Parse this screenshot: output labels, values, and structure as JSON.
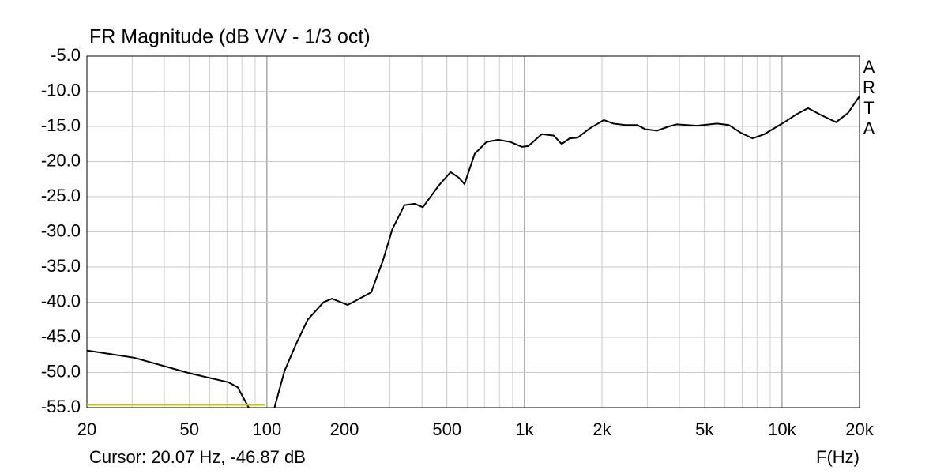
{
  "chart_data": {
    "type": "line",
    "title": "FR Magnitude (dB V/V - 1/3 oct)",
    "x_label": "F(Hz)",
    "annotation": "Cursor: 20.07 Hz, -46.87 dB",
    "watermark": "ARTA",
    "xscale": "log",
    "grid": true,
    "xlim": [
      20,
      20000
    ],
    "ylim": [
      -55,
      -5
    ],
    "xticks": [
      20,
      50,
      100,
      200,
      500,
      {
        "value": 1000,
        "label": "1k"
      },
      {
        "value": 2000,
        "label": "2k"
      },
      {
        "value": 5000,
        "label": "5k"
      },
      {
        "value": 10000,
        "label": "10k"
      },
      {
        "value": 20000,
        "label": "20k"
      }
    ],
    "xminorticks": [
      30,
      40,
      60,
      70,
      80,
      90,
      300,
      400,
      600,
      700,
      800,
      900,
      3000,
      4000,
      6000,
      7000,
      8000,
      9000
    ],
    "yticks": [
      {
        "value": -5,
        "label": "-5.0"
      },
      {
        "value": -10,
        "label": "-10.0"
      },
      {
        "value": -15,
        "label": "-15.0"
      },
      {
        "value": -20,
        "label": "-20.0"
      },
      {
        "value": -25,
        "label": "-25.0"
      },
      {
        "value": -30,
        "label": "-30.0"
      },
      {
        "value": -35,
        "label": "-35.0"
      },
      {
        "value": -40,
        "label": "-40.0"
      },
      {
        "value": -45,
        "label": "-45.0"
      },
      {
        "value": -50,
        "label": "-50.0"
      },
      {
        "value": -55,
        "label": "-55.0"
      }
    ],
    "series": [
      {
        "color": "#000000",
        "x": [
          20,
          30.5,
          50,
          71,
          77,
          85,
          95,
          107,
          117,
          130,
          144,
          166,
          179,
          206,
          254,
          282,
          307,
          342,
          375,
          403,
          465,
          517,
          556,
          585,
          641,
          713,
          792,
          880,
          977,
          1035,
          1168,
          1299,
          1395,
          1498,
          1609,
          1789,
          2034,
          2216,
          2465,
          2741,
          2944,
          3273,
          3640,
          3909,
          4676,
          5590,
          6219,
          6913,
          7685,
          8546,
          10214,
          11358,
          12627,
          14037,
          16220,
          18036,
          20000
        ],
        "values": [
          -46.87,
          -47.9,
          -50.1,
          -51.4,
          -52.1,
          -55,
          null,
          -55,
          -49.8,
          -45.9,
          -42.5,
          -40,
          -39.5,
          -40.4,
          -38.6,
          -34.1,
          -29.6,
          -26.2,
          -26,
          -26.5,
          -23.4,
          -21.5,
          -22.3,
          -23.2,
          -18.9,
          -17.2,
          -16.9,
          -17.2,
          -17.9,
          -17.8,
          -16.1,
          -16.3,
          -17.5,
          -16.7,
          -16.6,
          -15.3,
          -14.1,
          -14.6,
          -14.8,
          -14.8,
          -15.4,
          -15.6,
          -15,
          -14.7,
          -14.9,
          -14.6,
          -14.8,
          -15.9,
          -16.7,
          -16.1,
          -14.4,
          -13.3,
          -12.4,
          -13.3,
          -14.4,
          -13.1,
          -10.7
        ]
      },
      {
        "color": "#c8c800",
        "x": [
          20,
          98
        ],
        "values": [
          -54.6,
          -54.6
        ]
      }
    ]
  }
}
